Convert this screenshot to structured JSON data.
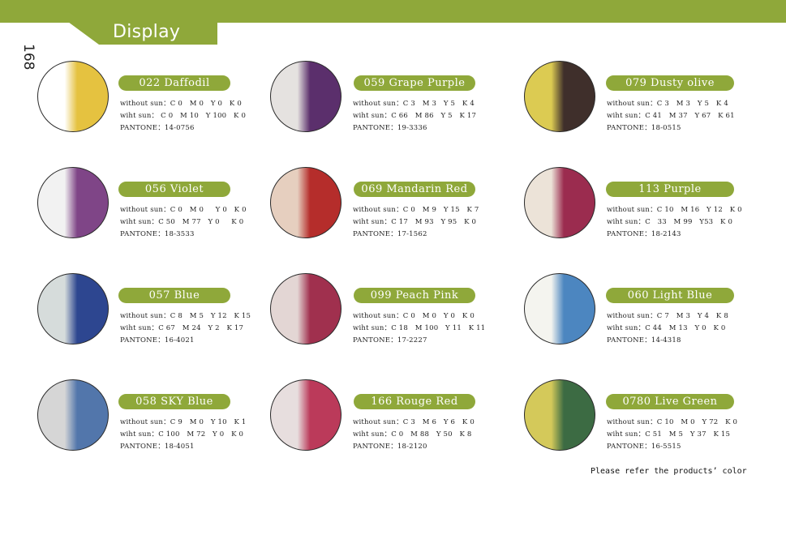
{
  "header": {
    "section_title": "Display",
    "page_number": "168",
    "accent_color": "#8fa83a"
  },
  "lenses": [
    {
      "name": "022 Daffodil",
      "without_sun": "without sun：C 0   M 0   Y 0   K 0",
      "with_sun": "wiht sun： C 0   M 10   Y 100   K 0",
      "pantone": "PANTONE：14-0756",
      "color_without": "#ffffff",
      "color_with": "#e5c240"
    },
    {
      "name": "059  Grape  Purple",
      "without_sun": "without sun：C 3   M 3   Y 5   K 4",
      "with_sun": "wiht sun：C 66   M 86   Y 5   K 17",
      "pantone": "PANTONE：19-3336",
      "color_without": "#e5e2e0",
      "color_with": "#5b2f6c"
    },
    {
      "name": "079 Dusty  olive",
      "without_sun": "without sun：C 3   M 3   Y 5   K 4",
      "with_sun": "wiht sun：C 41   M 37   Y 67   K 61",
      "pantone": "PANTONE：18-0515",
      "color_without": "#dccb52",
      "color_with": "#3f2f2b"
    },
    {
      "name": "056 Violet",
      "without_sun": "without sun：C 0   M 0     Y 0   K 0",
      "with_sun": "wiht sun：C 50   M 77   Y 0     K 0",
      "pantone": "PANTONE：18-3533",
      "color_without": "#f2f2f2",
      "color_with": "#7f4587"
    },
    {
      "name": "069 Mandarin Red",
      "without_sun": "without sun：C 0   M 9   Y 15   K 7",
      "with_sun": "wiht sun：C 17   M 93   Y 95   K 0",
      "pantone": "PANTONE：17-1562",
      "color_without": "#e6cfbf",
      "color_with": "#b52d2b"
    },
    {
      "name": "113 Purple",
      "without_sun": "without sun：C 10   M 16   Y 12   K 0",
      "with_sun": "wiht sun：C   33   M 99   Y53   K 0",
      "pantone": "PANTONE：18-2143",
      "color_without": "#ece3d8",
      "color_with": "#9b2c4f"
    },
    {
      "name": "057 Blue",
      "without_sun": "without sun：C 8   M 5   Y 12   K 15",
      "with_sun": "wiht sun：C 67   M 24   Y 2   K 17",
      "pantone": "PANTONE：16-4021",
      "color_without": "#d6dcdb",
      "color_with": "#2d4690"
    },
    {
      "name": "099  Peach  Pink",
      "without_sun": "without sun：C 0   M 0   Y 0   K 0",
      "with_sun": "wiht sun：C 18   M 100   Y 11   K 11",
      "pantone": "PANTONE：17-2227",
      "color_without": "#e3d6d4",
      "color_with": "#a0304e"
    },
    {
      "name": "060 Light Blue",
      "without_sun": "without sun：C 7   M 3   Y 4   K 8",
      "with_sun": "wiht sun：C 44   M 13   Y 0   K 0",
      "pantone": "PANTONE：14-4318",
      "color_without": "#f4f4ef",
      "color_with": "#4c86c0"
    },
    {
      "name": "058 SKY Blue",
      "without_sun": "without sun：C 9   M 0   Y 10   K 1",
      "with_sun": "wiht sun：C 100   M 72   Y 0   K 0",
      "pantone": "PANTONE：18-4051",
      "color_without": "#d6d6d6",
      "color_with": "#5276ab"
    },
    {
      "name": "166  Rouge Red",
      "without_sun": "without sun：C 3   M 6   Y 6   K 0",
      "with_sun": "wiht sun：C 0   M 88   Y 50   K 8",
      "pantone": "PANTONE：18-2120",
      "color_without": "#e7dede",
      "color_with": "#bb3a5a"
    },
    {
      "name": "0780  Live Green",
      "without_sun": "without sun：C 10   M 0   Y 72   K 0",
      "with_sun": "wiht sun：C 51   M 5   Y 37   K 15",
      "pantone": "PANTONE：16-5515",
      "color_without": "#d4c95a",
      "color_with": "#3c6b43"
    }
  ],
  "footer": {
    "note": "Please refer the products’ color"
  }
}
